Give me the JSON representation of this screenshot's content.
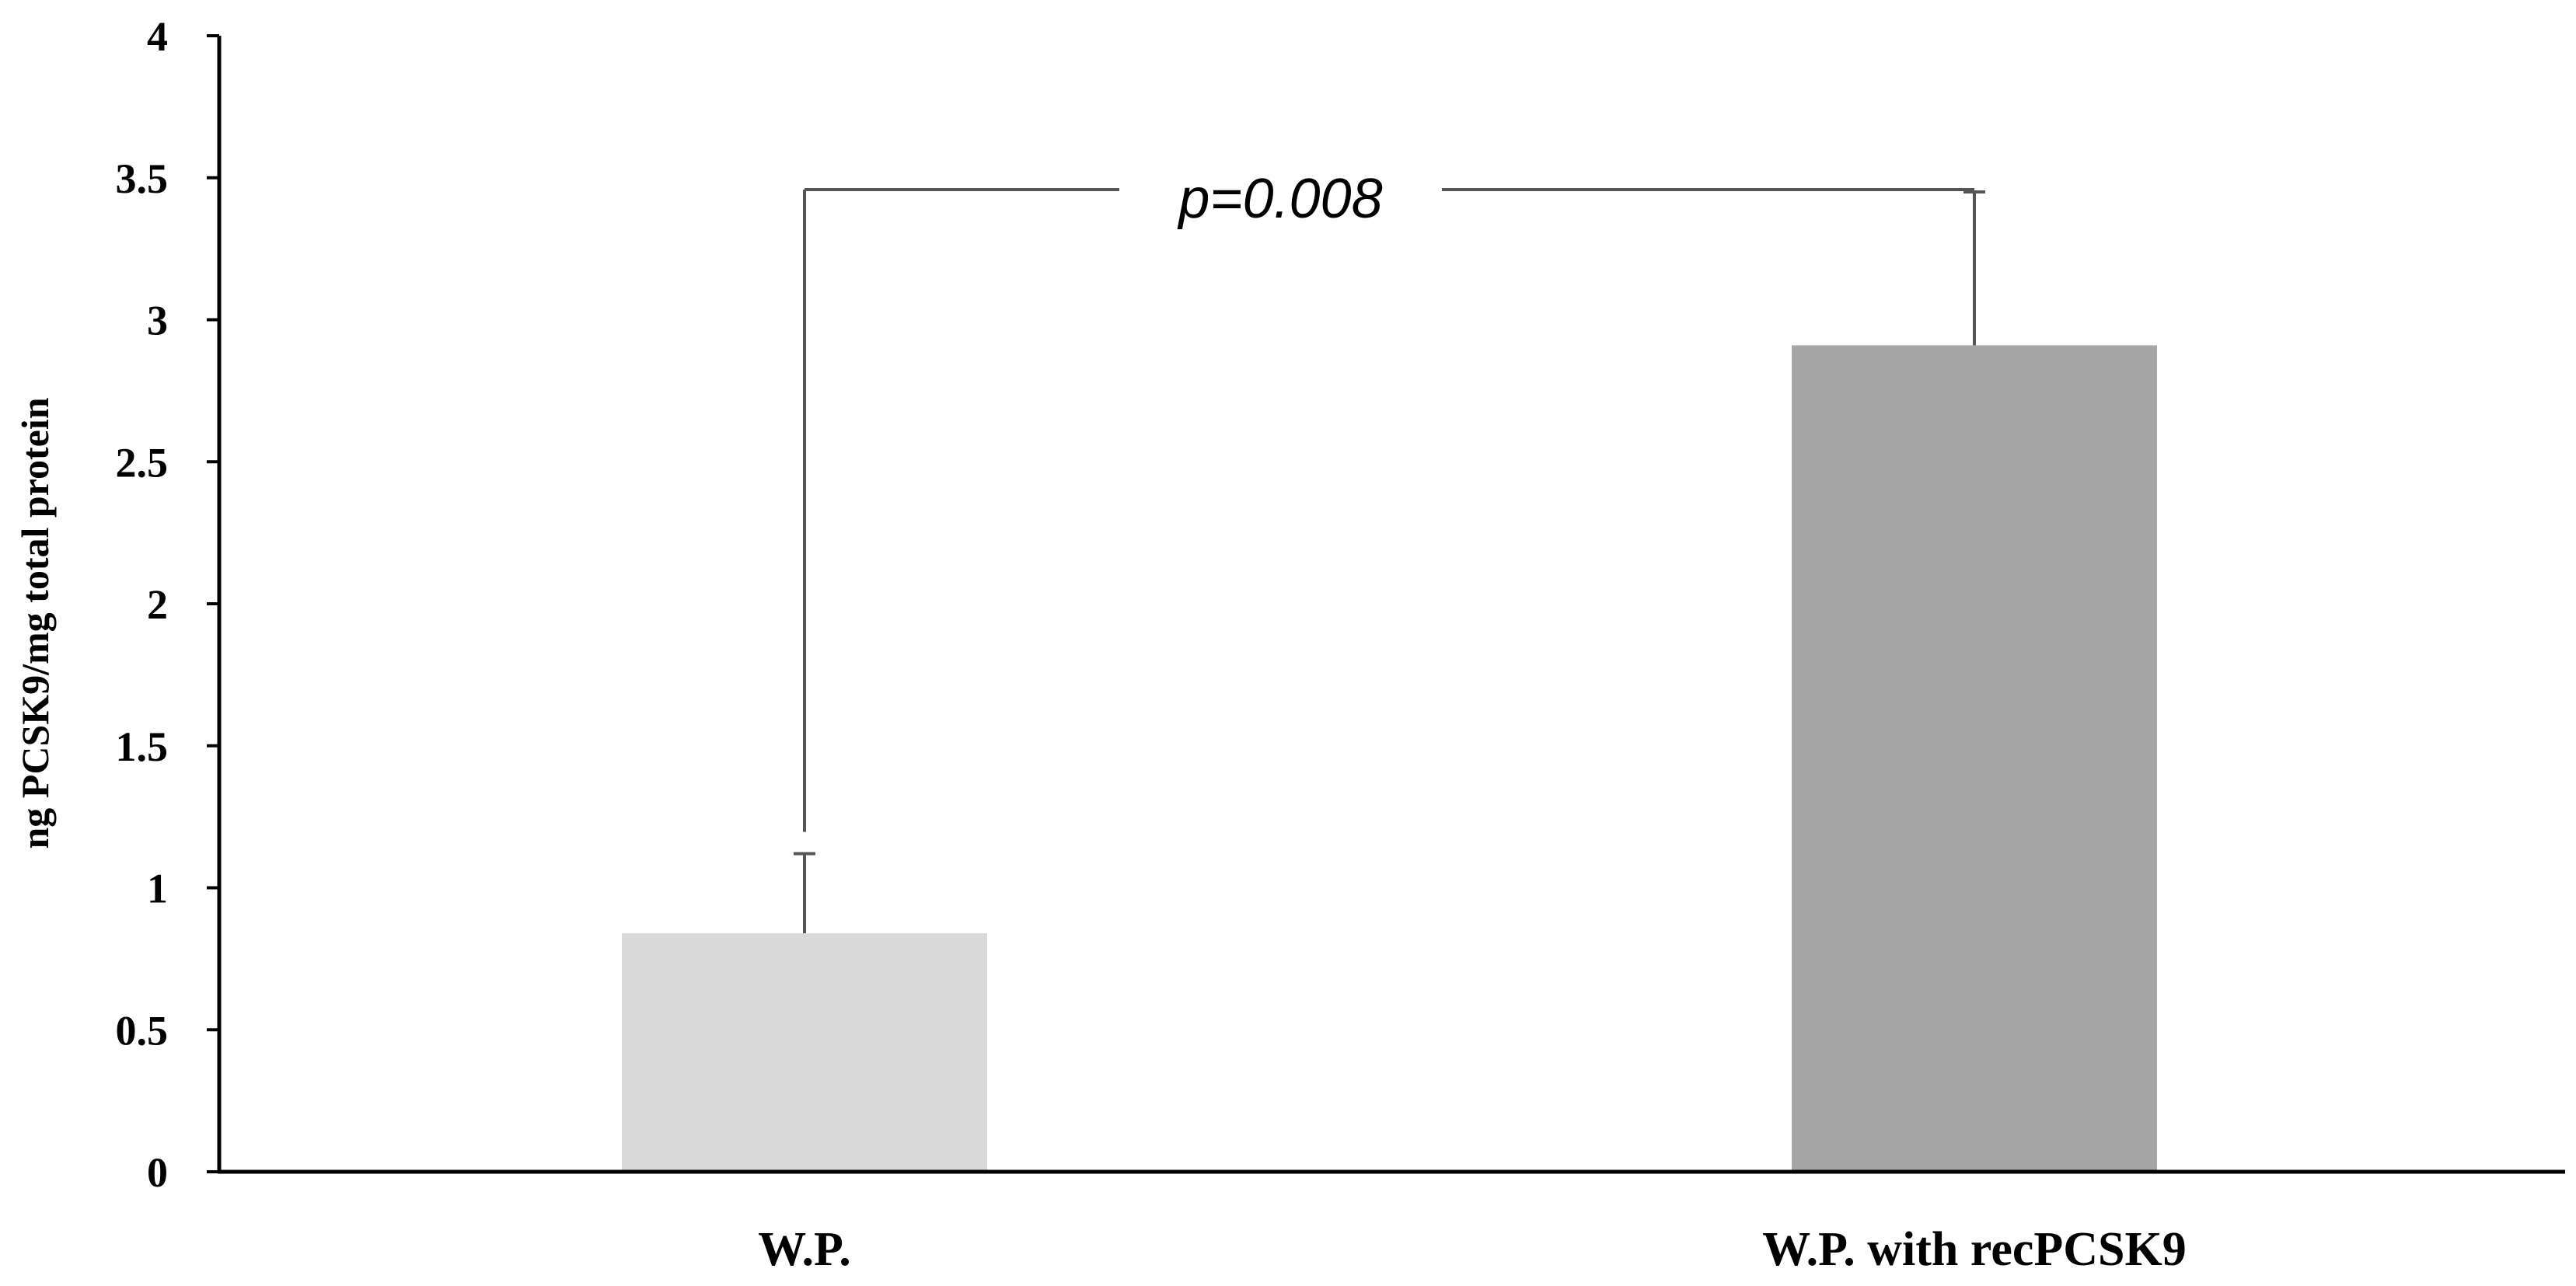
{
  "chart_data": {
    "type": "bar",
    "categories": [
      "W.P.",
      "W.P. with recPCSK9"
    ],
    "values": [
      0.84,
      2.91
    ],
    "error_upper": [
      1.12,
      3.45
    ],
    "ylabel": "ng PCSK9/mg total protein",
    "xlabel": "",
    "ylim": [
      0,
      4
    ],
    "yticks": [
      "0",
      "0.5",
      "1",
      "1.5",
      "2",
      "2.5",
      "3",
      "3.5",
      "4"
    ],
    "grid": false,
    "bar_colors": [
      "#d9d9d9",
      "#a6a6a6"
    ],
    "annotation": {
      "text": "p=0.008",
      "level": 3.45
    }
  }
}
